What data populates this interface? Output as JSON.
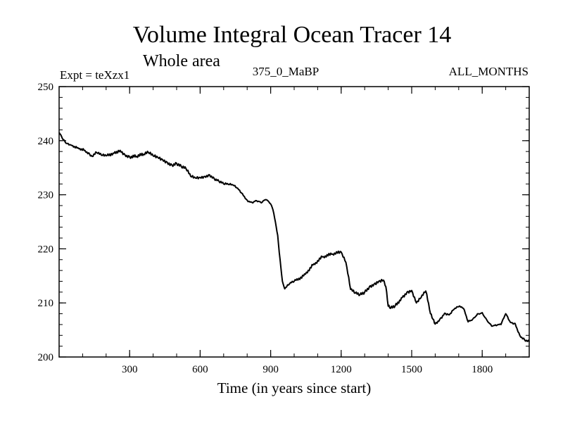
{
  "chart_data": {
    "type": "line",
    "title": "Volume Integral Ocean Tracer 14",
    "subtitle": "Whole area",
    "annotation_left": "Expt = teXzx1",
    "annotation_center": "375_0_MaBP",
    "annotation_right": "ALL_MONTHS",
    "xlabel": "Time (in years since start)",
    "ylabel": "",
    "xlim": [
      0,
      2000
    ],
    "ylim": [
      200,
      250
    ],
    "xticks": [
      300,
      600,
      900,
      1200,
      1500,
      1800
    ],
    "yticks": [
      200,
      210,
      220,
      230,
      240,
      250
    ],
    "grid": false,
    "series": [
      {
        "name": "Volume Integral Ocean Tracer 14",
        "color": "#000000",
        "x": [
          0,
          15,
          30,
          50,
          80,
          110,
          130,
          140,
          160,
          180,
          200,
          230,
          260,
          280,
          300,
          330,
          360,
          380,
          400,
          420,
          440,
          460,
          480,
          500,
          520,
          540,
          560,
          580,
          600,
          620,
          640,
          660,
          680,
          700,
          720,
          740,
          760,
          780,
          800,
          820,
          840,
          860,
          880,
          900,
          910,
          920,
          930,
          940,
          950,
          960,
          980,
          1000,
          1040,
          1080,
          1120,
          1160,
          1200,
          1220,
          1240,
          1260,
          1280,
          1300,
          1320,
          1340,
          1360,
          1380,
          1390,
          1400,
          1410,
          1430,
          1460,
          1480,
          1500,
          1520,
          1540,
          1560,
          1580,
          1590,
          1600,
          1620,
          1640,
          1660,
          1680,
          1700,
          1720,
          1740,
          1760,
          1780,
          1800,
          1820,
          1840,
          1860,
          1880,
          1900,
          1920,
          1940,
          1960,
          1980,
          2000
        ],
        "values": [
          241.5,
          240.3,
          239.5,
          239.2,
          238.7,
          238.2,
          237.5,
          237.1,
          237.8,
          237.3,
          237.2,
          237.7,
          238.2,
          237.4,
          237.0,
          237.1,
          237.5,
          237.8,
          237.2,
          236.9,
          236.5,
          236.0,
          235.5,
          235.8,
          235.2,
          234.8,
          233.4,
          233.1,
          233.2,
          233.4,
          233.7,
          233.0,
          232.5,
          232.0,
          231.9,
          231.8,
          231.2,
          230.2,
          229.0,
          228.6,
          228.9,
          228.5,
          229.1,
          228.3,
          227.2,
          225.0,
          222.5,
          218.0,
          214.0,
          212.6,
          213.5,
          214.0,
          215.0,
          217.0,
          218.5,
          219.0,
          219.4,
          217.5,
          212.5,
          211.8,
          211.5,
          212.0,
          213.0,
          213.5,
          214.0,
          214.2,
          213.0,
          209.4,
          209.0,
          209.5,
          211.0,
          212.0,
          212.3,
          210.0,
          211.0,
          212.2,
          208.0,
          207.0,
          206.1,
          207.0,
          208.1,
          207.8,
          208.8,
          209.3,
          209.0,
          206.5,
          207.0,
          208.0,
          208.2,
          206.8,
          205.7,
          205.8,
          206.0,
          208.0,
          206.4,
          206.2,
          204.0,
          203.2,
          202.8
        ]
      }
    ]
  }
}
